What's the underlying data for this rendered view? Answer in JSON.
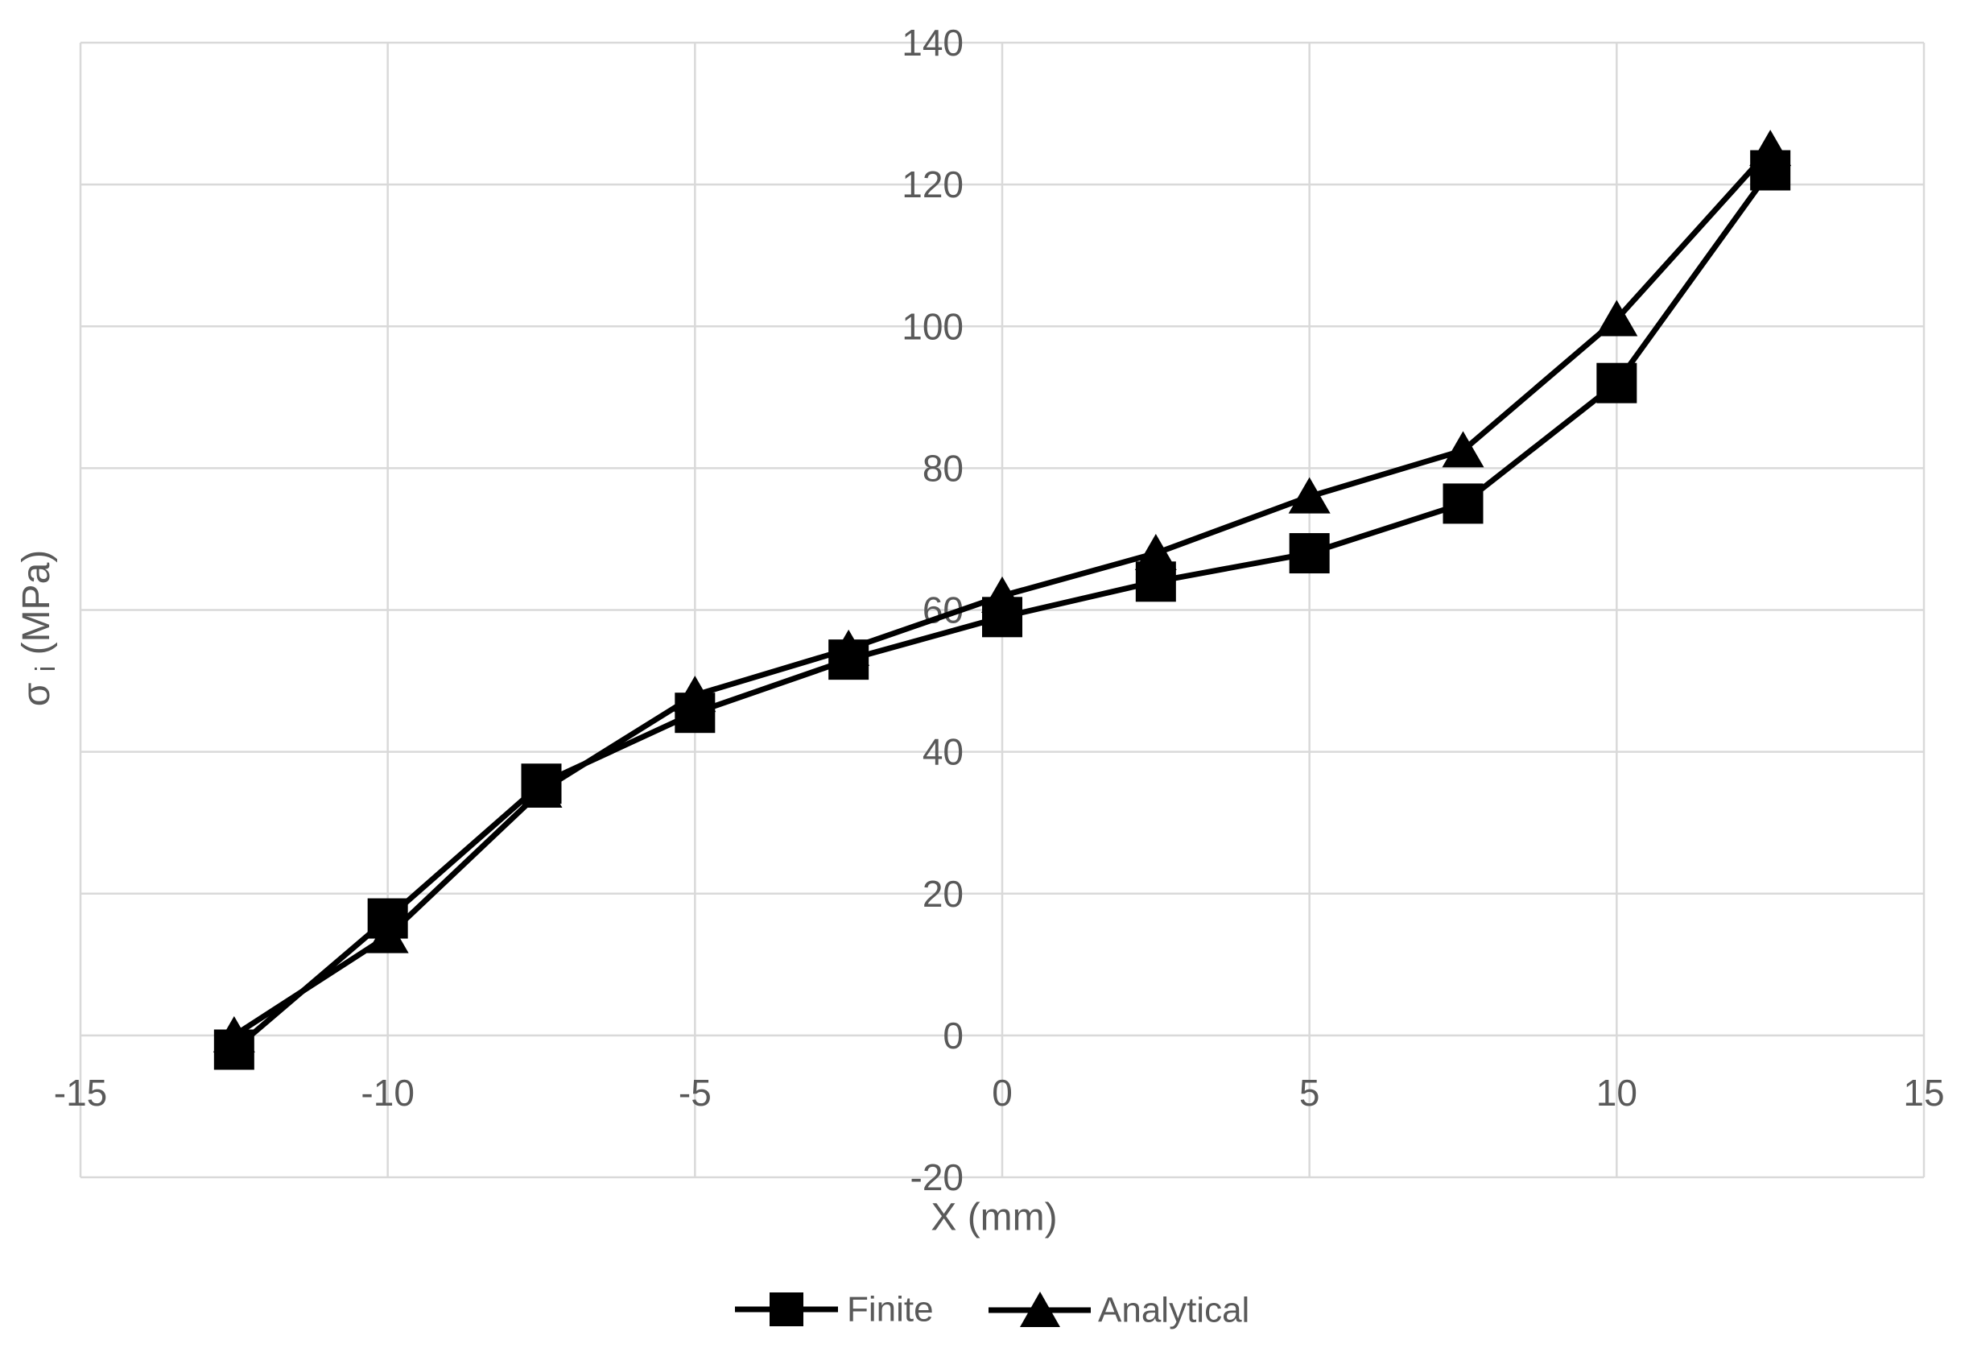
{
  "chart_data": {
    "type": "line",
    "title": "",
    "xlabel": "X (mm)",
    "ylabel": "σi (MPa)",
    "ylabel_parts": {
      "sigma": "σ",
      "sub": "i",
      "unit": " (MPa)"
    },
    "x": [
      -12.5,
      -10,
      -7.5,
      -5,
      -2.5,
      0,
      2.5,
      5,
      7.5,
      10,
      12.5
    ],
    "series": [
      {
        "name": "Finite",
        "marker": "square",
        "values": [
          -2,
          16.5,
          35.5,
          45.5,
          53,
          59,
          64,
          68,
          75,
          92,
          122
        ]
      },
      {
        "name": "Analytical",
        "marker": "triangle",
        "values": [
          0,
          14,
          34.5,
          48,
          54.5,
          62,
          68,
          76,
          82.5,
          101,
          125
        ]
      }
    ],
    "xlim": [
      -15,
      15
    ],
    "ylim": [
      -20,
      140
    ],
    "x_ticks": [
      -15,
      -10,
      -5,
      0,
      5,
      10,
      15
    ],
    "y_ticks": [
      140,
      120,
      100,
      80,
      60,
      40,
      20,
      0,
      -20
    ],
    "grid": true,
    "legend_position": "bottom-center",
    "colors": {
      "series": "#000000",
      "grid": "#d9d9d9",
      "tick_text": "#595959",
      "background": "#ffffff"
    }
  }
}
